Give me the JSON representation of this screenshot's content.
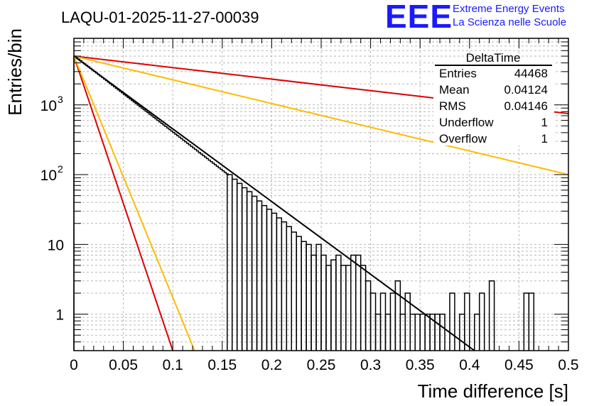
{
  "header": {
    "logo_text": "EEE",
    "logo_line1": "Extreme Energy Events",
    "logo_line2": "La Scienza nelle Scuole",
    "brand_color": "#1a1aff"
  },
  "chart_data": {
    "type": "histogram",
    "title": "LAQU-01-2025-11-27-00039",
    "xlabel": "Time difference [s]",
    "ylabel": "Entries/bin",
    "xlim": [
      0,
      0.5
    ],
    "ylim": [
      0.3,
      9000
    ],
    "yscale": "log",
    "grid": true,
    "x_ticks": [
      "0",
      "0.05",
      "0.1",
      "0.15",
      "0.2",
      "0.25",
      "0.3",
      "0.35",
      "0.4",
      "0.45",
      "0.5"
    ],
    "y_ticks": [
      {
        "base": "1",
        "exp": ""
      },
      {
        "base": "10",
        "exp": ""
      },
      {
        "base": "10",
        "exp": "2"
      },
      {
        "base": "10",
        "exp": "3"
      }
    ],
    "stats_box": {
      "title": "DeltaTime",
      "rows": [
        {
          "label": "Entries",
          "value": "44468"
        },
        {
          "label": "Mean",
          "value": "0.04124"
        },
        {
          "label": "RMS",
          "value": "0.04146"
        },
        {
          "label": "Underflow",
          "value": "1"
        },
        {
          "label": "Overflow",
          "value": "1"
        }
      ],
      "position": "top-right"
    },
    "histogram": {
      "name": "DeltaTime",
      "bin_width": 0.005,
      "color": "#000000",
      "bins": [
        {
          "x": 0.155,
          "y": 100
        },
        {
          "x": 0.16,
          "y": 86
        },
        {
          "x": 0.165,
          "y": 75
        },
        {
          "x": 0.17,
          "y": 65
        },
        {
          "x": 0.175,
          "y": 57
        },
        {
          "x": 0.18,
          "y": 49
        },
        {
          "x": 0.185,
          "y": 42
        },
        {
          "x": 0.19,
          "y": 36
        },
        {
          "x": 0.195,
          "y": 32
        },
        {
          "x": 0.2,
          "y": 28
        },
        {
          "x": 0.205,
          "y": 24
        },
        {
          "x": 0.21,
          "y": 21
        },
        {
          "x": 0.215,
          "y": 18
        },
        {
          "x": 0.22,
          "y": 15
        },
        {
          "x": 0.225,
          "y": 13
        },
        {
          "x": 0.23,
          "y": 11
        },
        {
          "x": 0.235,
          "y": 10
        },
        {
          "x": 0.24,
          "y": 7
        },
        {
          "x": 0.245,
          "y": 10
        },
        {
          "x": 0.25,
          "y": 7
        },
        {
          "x": 0.255,
          "y": 5
        },
        {
          "x": 0.26,
          "y": 6
        },
        {
          "x": 0.265,
          "y": 7
        },
        {
          "x": 0.27,
          "y": 5
        },
        {
          "x": 0.275,
          "y": 5
        },
        {
          "x": 0.28,
          "y": 7
        },
        {
          "x": 0.285,
          "y": 7
        },
        {
          "x": 0.29,
          "y": 5
        },
        {
          "x": 0.295,
          "y": 3
        },
        {
          "x": 0.3,
          "y": 2
        },
        {
          "x": 0.305,
          "y": 1
        },
        {
          "x": 0.31,
          "y": 2
        },
        {
          "x": 0.315,
          "y": 1
        },
        {
          "x": 0.32,
          "y": 2
        },
        {
          "x": 0.325,
          "y": 3
        },
        {
          "x": 0.33,
          "y": 1
        },
        {
          "x": 0.335,
          "y": 2
        },
        {
          "x": 0.34,
          "y": 1
        },
        {
          "x": 0.345,
          "y": 1
        },
        {
          "x": 0.35,
          "y": 1
        },
        {
          "x": 0.355,
          "y": 1
        },
        {
          "x": 0.36,
          "y": 1
        },
        {
          "x": 0.365,
          "y": 1
        },
        {
          "x": 0.37,
          "y": 1
        },
        {
          "x": 0.38,
          "y": 2
        },
        {
          "x": 0.39,
          "y": 1
        },
        {
          "x": 0.395,
          "y": 2
        },
        {
          "x": 0.405,
          "y": 1
        },
        {
          "x": 0.41,
          "y": 2
        },
        {
          "x": 0.42,
          "y": 3
        },
        {
          "x": 0.455,
          "y": 2
        },
        {
          "x": 0.46,
          "y": 2
        }
      ],
      "dense_segment": {
        "x0": 0.0,
        "x1": 0.155,
        "y0": 5000,
        "y1": 100
      }
    },
    "series": [
      {
        "name": "fit",
        "color": "#000000",
        "points": [
          [
            0.0,
            5000
          ],
          [
            0.405,
            0.3
          ]
        ]
      },
      {
        "name": "red-slow",
        "color": "#dd0000",
        "points": [
          [
            0.0,
            5000
          ],
          [
            0.5,
            750
          ]
        ]
      },
      {
        "name": "orange-slow",
        "color": "#ffbb00",
        "points": [
          [
            0.0,
            5000
          ],
          [
            0.5,
            100
          ]
        ]
      },
      {
        "name": "red-fast",
        "color": "#dd0000",
        "points": [
          [
            0.0,
            5000
          ],
          [
            0.1,
            0.3
          ]
        ]
      },
      {
        "name": "orange-fast",
        "color": "#ffbb00",
        "points": [
          [
            0.0,
            5000
          ],
          [
            0.122,
            0.3
          ]
        ]
      }
    ]
  }
}
